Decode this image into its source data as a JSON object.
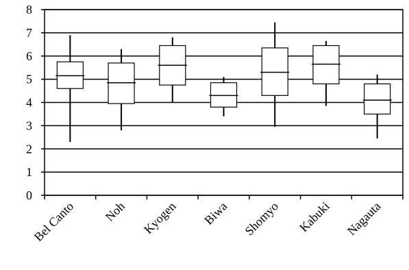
{
  "chart_data": {
    "type": "boxplot",
    "title": "",
    "xlabel": "",
    "ylabel": "",
    "ylim": [
      0,
      8
    ],
    "yticks": [
      "0",
      "1",
      "2",
      "3",
      "4",
      "5",
      "6",
      "7",
      "8"
    ],
    "grid": "horizontal",
    "categories": [
      "Bel Canto",
      "Noh",
      "Kyogen",
      "Biwa",
      "Shomyo",
      "Kabuki",
      "Nagauta"
    ],
    "boxes": [
      {
        "min": 2.3,
        "q1": 4.6,
        "median": 5.15,
        "q3": 5.75,
        "max": 6.9
      },
      {
        "min": 2.8,
        "q1": 3.95,
        "median": 4.85,
        "q3": 5.7,
        "max": 6.3
      },
      {
        "min": 4.0,
        "q1": 4.75,
        "median": 5.6,
        "q3": 6.45,
        "max": 6.8
      },
      {
        "min": 3.4,
        "q1": 3.8,
        "median": 4.3,
        "q3": 4.85,
        "max": 5.1
      },
      {
        "min": 2.95,
        "q1": 4.3,
        "median": 5.3,
        "q3": 6.35,
        "max": 7.45
      },
      {
        "min": 3.85,
        "q1": 4.8,
        "median": 5.65,
        "q3": 6.45,
        "max": 6.65
      },
      {
        "min": 2.45,
        "q1": 3.5,
        "median": 4.1,
        "q3": 4.8,
        "max": 5.2
      }
    ],
    "colors": {
      "line": "#000000",
      "box_fill": "#ffffff",
      "background": "#ffffff"
    }
  }
}
